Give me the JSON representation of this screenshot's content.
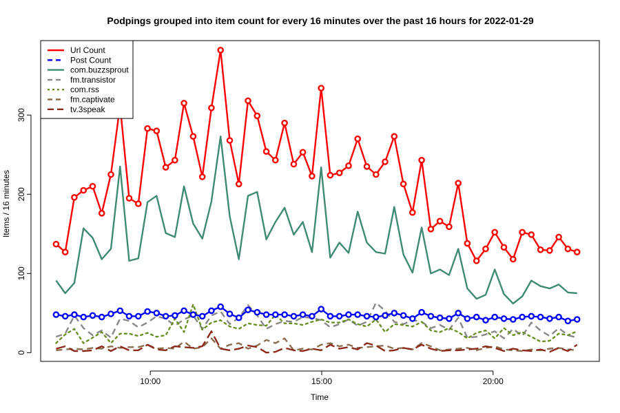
{
  "chart_data": {
    "type": "line",
    "title": "Podpings grouped into item count for every 16 minutes  over the past 16 hours for 2022-01-29",
    "xlabel": "Time",
    "ylabel": "Items / 16 minutes",
    "x_ticks": [
      {
        "label": "10:00",
        "hour": 10
      },
      {
        "label": "15:00",
        "hour": 15
      },
      {
        "label": "20:00",
        "hour": 20
      }
    ],
    "y_ticks": [
      0,
      100,
      200,
      300
    ],
    "xlim_hours": [
      6.8,
      23.1
    ],
    "ylim": [
      -11,
      394
    ],
    "grid": false,
    "legend_position": "top-left",
    "x_start_hour": 7.25,
    "x_step_minutes": 16,
    "series": [
      {
        "name": "Url Count",
        "color": "#ff0000",
        "dash": "solid",
        "markers": true,
        "values": [
          137,
          127,
          196,
          205,
          210,
          176,
          225,
          312,
          195,
          188,
          283,
          280,
          234,
          243,
          315,
          273,
          222,
          309,
          382,
          268,
          213,
          318,
          299,
          254,
          243,
          290,
          238,
          253,
          223,
          334,
          224,
          227,
          236,
          270,
          235,
          225,
          241,
          273,
          213,
          177,
          243,
          156,
          166,
          159,
          214,
          138,
          116,
          131,
          152,
          133,
          118,
          152,
          149,
          130,
          129,
          146,
          131,
          127
        ]
      },
      {
        "name": "Post Count",
        "color": "#0000ff",
        "dash": "dashed",
        "markers": true,
        "values": [
          48,
          46,
          48,
          45,
          47,
          45,
          49,
          53,
          46,
          46,
          52,
          50,
          46,
          47,
          53,
          48,
          46,
          53,
          58,
          49,
          44,
          54,
          51,
          48,
          48,
          48,
          46,
          48,
          46,
          55,
          46,
          46,
          48,
          48,
          46,
          45,
          47,
          50,
          47,
          43,
          51,
          46,
          44,
          43,
          50,
          43,
          45,
          41,
          45,
          43,
          42,
          45,
          46,
          45,
          43,
          45,
          40,
          42
        ]
      },
      {
        "name": "com.buzzsprout",
        "color": "#3e8a72",
        "dash": "solid",
        "markers": false,
        "values": [
          91,
          75,
          88,
          157,
          145,
          118,
          131,
          235,
          116,
          119,
          190,
          198,
          151,
          146,
          210,
          163,
          144,
          191,
          273,
          172,
          118,
          198,
          203,
          143,
          165,
          183,
          149,
          165,
          127,
          234,
          120,
          139,
          126,
          178,
          139,
          127,
          125,
          184,
          124,
          101,
          158,
          100,
          105,
          98,
          131,
          81,
          68,
          73,
          105,
          74,
          62,
          71,
          91,
          84,
          81,
          86,
          76,
          75
        ]
      },
      {
        "name": "fm.transistor",
        "color": "#888888",
        "dash": "dashed",
        "markers": false,
        "values": [
          20,
          24,
          47,
          31,
          22,
          28,
          19,
          43,
          40,
          32,
          38,
          46,
          43,
          34,
          42,
          47,
          30,
          47,
          52,
          36,
          44,
          60,
          47,
          30,
          36,
          40,
          39,
          45,
          44,
          41,
          32,
          36,
          42,
          34,
          39,
          63,
          53,
          39,
          36,
          41,
          39,
          31,
          35,
          29,
          44,
          19,
          20,
          23,
          27,
          18,
          30,
          21,
          38,
          28,
          21,
          31,
          22,
          19
        ]
      },
      {
        "name": "com.rss",
        "color": "#6b8e23",
        "dash": "dotted",
        "markers": false,
        "values": [
          12,
          23,
          30,
          12,
          19,
          26,
          12,
          24,
          24,
          21,
          25,
          20,
          22,
          43,
          26,
          61,
          29,
          38,
          41,
          33,
          30,
          37,
          35,
          34,
          48,
          37,
          37,
          35,
          39,
          42,
          38,
          38,
          42,
          36,
          33,
          42,
          26,
          36,
          35,
          33,
          39,
          28,
          26,
          31,
          26,
          18,
          25,
          28,
          18,
          31,
          22,
          26,
          20,
          14,
          15,
          24,
          22,
          27
        ]
      },
      {
        "name": "fm.captivate",
        "color": "#8b6e4e",
        "dash": "dashed",
        "markers": false,
        "values": [
          3,
          4,
          5,
          4,
          6,
          5,
          8,
          6,
          7,
          7,
          10,
          5,
          6,
          5,
          14,
          5,
          7,
          18,
          5,
          10,
          12,
          5,
          9,
          16,
          12,
          18,
          3,
          5,
          4,
          10,
          12,
          8,
          10,
          6,
          7,
          8,
          9,
          5,
          6,
          4,
          12,
          8,
          3,
          4,
          5,
          6,
          3,
          6,
          8,
          4,
          3,
          2,
          4,
          3,
          5,
          6,
          4,
          3
        ]
      },
      {
        "name": "tv.3speak",
        "color": "#8b2a1a",
        "dash": "longdash",
        "markers": false,
        "values": [
          5,
          8,
          2,
          2,
          3,
          8,
          2,
          8,
          3,
          3,
          10,
          4,
          3,
          8,
          7,
          6,
          8,
          27,
          5,
          3,
          5,
          9,
          7,
          0,
          1,
          6,
          3,
          2,
          5,
          3,
          10,
          5,
          7,
          4,
          12,
          9,
          2,
          3,
          6,
          4,
          10,
          5,
          2,
          3,
          3,
          4,
          5,
          8,
          6,
          2,
          5,
          3,
          2,
          4,
          1,
          6,
          2,
          10
        ]
      }
    ]
  }
}
